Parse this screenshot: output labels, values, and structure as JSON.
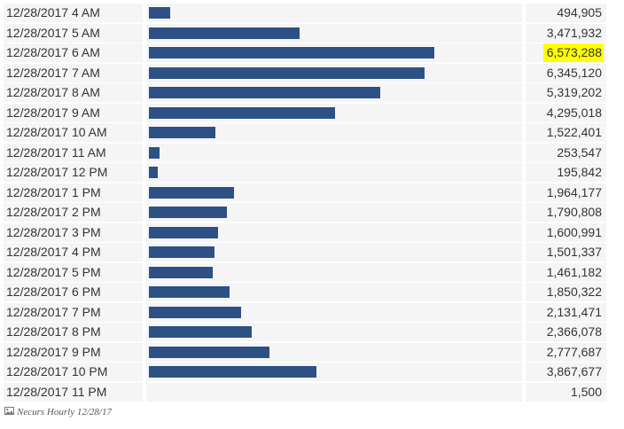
{
  "caption": {
    "text": "Necurs Hourly 12/28/17",
    "icon": "image-icon"
  },
  "colors": {
    "bar": "#2d5185",
    "highlight": "#ffff00",
    "cell_background": "#f5f5f5"
  },
  "highlighted_row_index": 2,
  "chart_data": {
    "type": "bar",
    "orientation": "horizontal",
    "categories": [
      "12/28/2017 4 AM",
      "12/28/2017 5 AM",
      "12/28/2017 6 AM",
      "12/28/2017 7 AM",
      "12/28/2017 8 AM",
      "12/28/2017 9 AM",
      "12/28/2017 10 AM",
      "12/28/2017 11 AM",
      "12/28/2017 12 PM",
      "12/28/2017 1 PM",
      "12/28/2017 2 PM",
      "12/28/2017 3 PM",
      "12/28/2017 4 PM",
      "12/28/2017 5 PM",
      "12/28/2017 6 PM",
      "12/28/2017 7 PM",
      "12/28/2017 8 PM",
      "12/28/2017 9 PM",
      "12/28/2017 10 PM",
      "12/28/2017 11 PM"
    ],
    "values": [
      494905,
      3471932,
      6573288,
      6345120,
      5319202,
      4295018,
      1522401,
      253547,
      195842,
      1964177,
      1790808,
      1600991,
      1501337,
      1461182,
      1850322,
      2131471,
      2366078,
      2777687,
      3867677,
      1500
    ],
    "value_labels": [
      "494,905",
      "3,471,932",
      "6,573,288",
      "6,345,120",
      "5,319,202",
      "4,295,018",
      "1,522,401",
      "253,547",
      "195,842",
      "1,964,177",
      "1,790,808",
      "1,600,991",
      "1,501,337",
      "1,461,182",
      "1,850,322",
      "2,131,471",
      "2,366,078",
      "2,777,687",
      "3,867,677",
      "1,500"
    ],
    "xlim": [
      0,
      6573288
    ],
    "grid": false,
    "legend": "none"
  }
}
